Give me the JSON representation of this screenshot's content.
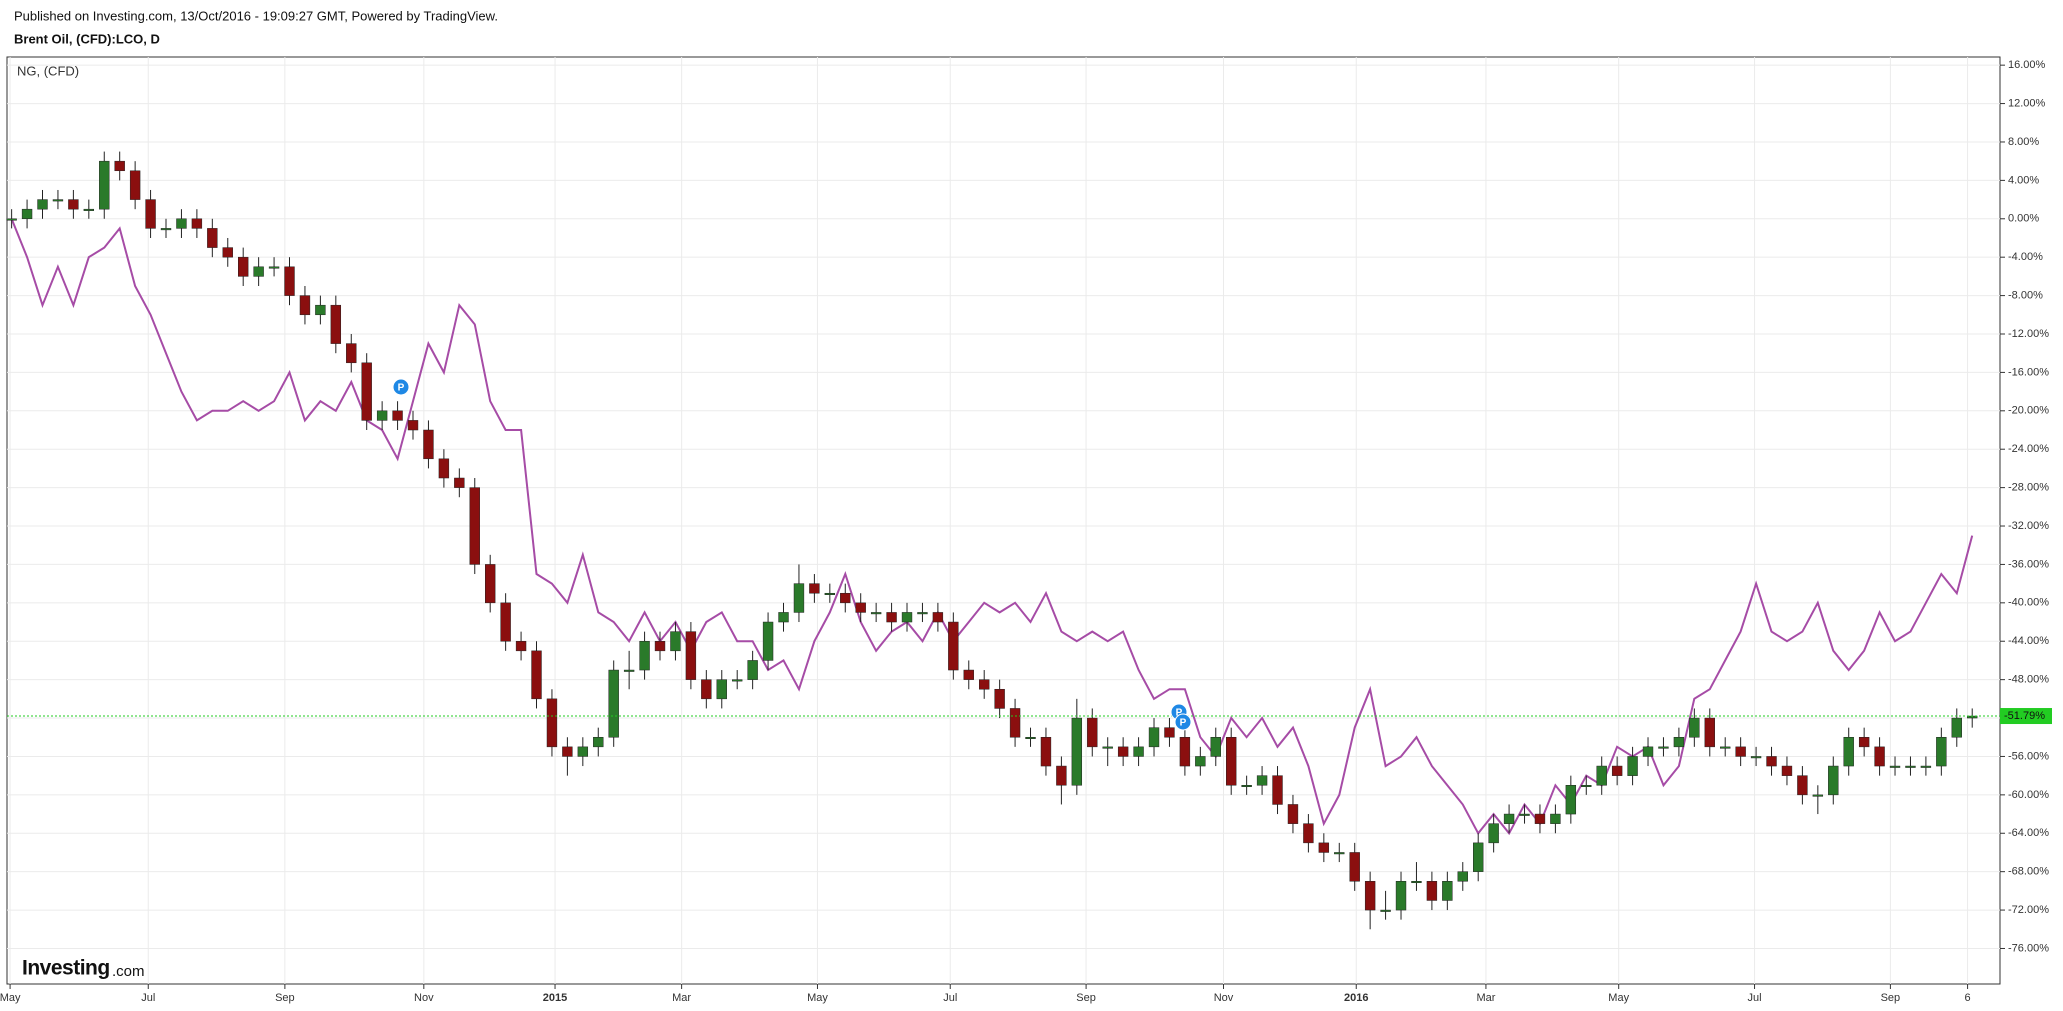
{
  "header": {
    "published": "Published on Investing.com, 13/Oct/2016 - 19:09:27 GMT, Powered by TradingView.",
    "logo": "Investing",
    "logo_suffix": ".com"
  },
  "chart_data": {
    "type": "candlestick",
    "title": "Brent Oil, (CFD):LCO, D",
    "categories": [
      null,
      null,
      null,
      null,
      null,
      null,
      null,
      null,
      null,
      null,
      null,
      null,
      null,
      null,
      null,
      null,
      null,
      null,
      null,
      null,
      null,
      null,
      null,
      null,
      null,
      null,
      null,
      null,
      null,
      null,
      null,
      null,
      null,
      null,
      null,
      null,
      null,
      null,
      null,
      null,
      null,
      null,
      null,
      null,
      null,
      null,
      null,
      null,
      null,
      null,
      null,
      null,
      null,
      null,
      null,
      null,
      null,
      null,
      null,
      null,
      null,
      null,
      null,
      null,
      null,
      null,
      null,
      null,
      null,
      null,
      null,
      null,
      null,
      null,
      null,
      null,
      null,
      null,
      null,
      null,
      null,
      null,
      null,
      null,
      null,
      null,
      null,
      null,
      null,
      null,
      null,
      null,
      null,
      null,
      null,
      null,
      null,
      null,
      null,
      null,
      null,
      null,
      null,
      null,
      null,
      null,
      null,
      null,
      null,
      null,
      null,
      null,
      null,
      null,
      null,
      null,
      null,
      null,
      null,
      null,
      null,
      null,
      null,
      null,
      null,
      null,
      null,
      null
    ],
    "series": [
      {
        "name": "Brent Oil, (CFD):LCO, D",
        "type": "candlestick",
        "up_color": "#2a7a2a",
        "down_color": "#8b0f0f",
        "open": [
          0,
          0,
          1,
          2,
          2,
          1,
          1,
          6,
          5,
          2,
          -1,
          -1,
          0,
          -1,
          -3,
          -4,
          -6,
          -5,
          -5,
          -8,
          -10,
          -9,
          -13,
          -15,
          -21,
          -20,
          -21,
          -22,
          -25,
          -27,
          -28,
          -36,
          -40,
          -44,
          -45,
          -50,
          -55,
          -56,
          -55,
          -54,
          -47,
          -47,
          -44,
          -45,
          -43,
          -48,
          -50,
          -48,
          -48,
          -46,
          -42,
          -41,
          -38,
          -39,
          -39,
          -40,
          -41,
          -41,
          -42,
          -41,
          -41,
          -42,
          -47,
          -48,
          -49,
          -51,
          -54,
          -54,
          -57,
          -59,
          -52,
          -55,
          -55,
          -56,
          -55,
          -53,
          -54,
          -57,
          -56,
          -54,
          -59,
          -59,
          -58,
          -61,
          -63,
          -65,
          -66,
          -66,
          -69,
          -72,
          -72,
          -69,
          -69,
          -71,
          -69,
          -68,
          -65,
          -63,
          -62,
          -62,
          -63,
          -62,
          -59,
          -59,
          -57,
          -58,
          -56,
          -55,
          -55,
          -54,
          -52,
          -55,
          -55,
          -56,
          -56,
          -57,
          -58,
          -60,
          -60,
          -57,
          -54,
          -55,
          -57,
          -57,
          -57,
          -57,
          -54,
          -52
        ],
        "high": [
          1,
          2,
          3,
          3,
          3,
          2,
          7,
          7,
          6,
          3,
          0,
          1,
          1,
          0,
          -2,
          -3,
          -4,
          -4,
          -4,
          -7,
          -8,
          -8,
          -12,
          -14,
          -19,
          -19,
          -20,
          -21,
          -24,
          -26,
          -27,
          -35,
          -39,
          -43,
          -44,
          -49,
          -54,
          -54,
          -53,
          -46,
          -45,
          -43,
          -43,
          -42,
          -42,
          -47,
          -47,
          -47,
          -45,
          -41,
          -40,
          -36,
          -37,
          -38,
          -38,
          -39,
          -40,
          -40,
          -40,
          -40,
          -40,
          -41,
          -46,
          -47,
          -48,
          -50,
          -53,
          -53,
          -56,
          -50,
          -51,
          -54,
          -54,
          -54,
          -52,
          -52,
          -53,
          -55,
          -53,
          -53,
          -58,
          -57,
          -57,
          -60,
          -62,
          -64,
          -65,
          -65,
          -68,
          -70,
          -68,
          -67,
          -68,
          -68,
          -67,
          -64,
          -62,
          -61,
          -61,
          -61,
          -61,
          -58,
          -58,
          -56,
          -56,
          -55,
          -54,
          -54,
          -53,
          -51,
          -51,
          -54,
          -54,
          -55,
          -55,
          -56,
          -57,
          -59,
          -56,
          -53,
          -53,
          -54,
          -56,
          -56,
          -56,
          -53,
          -51,
          -51
        ],
        "low": [
          -1,
          -1,
          0,
          1,
          0,
          0,
          0,
          4,
          1,
          -2,
          -2,
          -2,
          -2,
          -4,
          -5,
          -7,
          -7,
          -6,
          -9,
          -11,
          -11,
          -14,
          -16,
          -22,
          -22,
          -22,
          -23,
          -26,
          -28,
          -29,
          -37,
          -41,
          -45,
          -46,
          -51,
          -56,
          -58,
          -57,
          -56,
          -55,
          -49,
          -48,
          -46,
          -46,
          -49,
          -51,
          -51,
          -49,
          -49,
          -47,
          -43,
          -42,
          -40,
          -40,
          -41,
          -42,
          -42,
          -43,
          -43,
          -42,
          -43,
          -48,
          -49,
          -50,
          -52,
          -55,
          -55,
          -58,
          -61,
          -60,
          -56,
          -57,
          -57,
          -57,
          -56,
          -55,
          -58,
          -58,
          -57,
          -60,
          -60,
          -60,
          -62,
          -64,
          -66,
          -67,
          -67,
          -70,
          -74,
          -73,
          -73,
          -70,
          -72,
          -72,
          -70,
          -69,
          -66,
          -64,
          -63,
          -64,
          -64,
          -63,
          -60,
          -60,
          -59,
          -59,
          -57,
          -56,
          -56,
          -55,
          -56,
          -56,
          -57,
          -57,
          -58,
          -59,
          -61,
          -62,
          -61,
          -58,
          -56,
          -58,
          -58,
          -58,
          -58,
          -58,
          -55,
          -53
        ],
        "close": [
          0,
          1,
          2,
          2,
          1,
          1,
          6,
          5,
          2,
          -1,
          -1,
          0,
          -1,
          -3,
          -4,
          -6,
          -5,
          -5,
          -8,
          -10,
          -9,
          -13,
          -15,
          -21,
          -20,
          -21,
          -22,
          -25,
          -27,
          -28,
          -36,
          -40,
          -44,
          -45,
          -50,
          -55,
          -56,
          -55,
          -54,
          -47,
          -47,
          -44,
          -45,
          -43,
          -48,
          -50,
          -48,
          -48,
          -46,
          -42,
          -41,
          -38,
          -39,
          -39,
          -40,
          -41,
          -41,
          -42,
          -41,
          -41,
          -42,
          -47,
          -48,
          -49,
          -51,
          -54,
          -54,
          -57,
          -59,
          -52,
          -55,
          -55,
          -56,
          -55,
          -53,
          -54,
          -57,
          -56,
          -54,
          -59,
          -59,
          -58,
          -61,
          -63,
          -65,
          -66,
          -66,
          -69,
          -72,
          -72,
          -69,
          -69,
          -71,
          -69,
          -68,
          -65,
          -63,
          -62,
          -62,
          -63,
          -62,
          -59,
          -59,
          -57,
          -58,
          -56,
          -55,
          -55,
          -54,
          -52,
          -55,
          -55,
          -56,
          -56,
          -57,
          -58,
          -60,
          -60,
          -57,
          -54,
          -55,
          -57,
          -57,
          -57,
          -57,
          -54,
          -52,
          -51.79
        ]
      },
      {
        "name": "NG,  (CFD)",
        "type": "line",
        "color": "#a64ca6",
        "values": [
          0,
          -4,
          -9,
          -5,
          -9,
          -4,
          -3,
          -1,
          -7,
          -10,
          -14,
          -18,
          -21,
          -20,
          -20,
          -19,
          -20,
          -19,
          -16,
          -21,
          -19,
          -20,
          -17,
          -21,
          -22,
          -25,
          -19,
          -13,
          -16,
          -9,
          -11,
          -19,
          -22,
          -22,
          -37,
          -38,
          -40,
          -35,
          -41,
          -42,
          -44,
          -41,
          -44,
          -42,
          -45,
          -42,
          -41,
          -44,
          -44,
          -47,
          -46,
          -49,
          -44,
          -41,
          -37,
          -42,
          -45,
          -43,
          -42,
          -44,
          -41,
          -44,
          -42,
          -40,
          -41,
          -40,
          -42,
          -39,
          -43,
          -44,
          -43,
          -44,
          -43,
          -47,
          -50,
          -49,
          -49,
          -54,
          -56,
          -52,
          -54,
          -52,
          -55,
          -53,
          -57,
          -63,
          -60,
          -53,
          -49,
          -57,
          -56,
          -54,
          -57,
          -59,
          -61,
          -64,
          -62,
          -64,
          -61,
          -63,
          -59,
          -61,
          -58,
          -59,
          -55,
          -56,
          -55,
          -59,
          -57,
          -50,
          -49,
          -46,
          -43,
          -38,
          -43,
          -44,
          -43,
          -40,
          -45,
          -47,
          -45,
          -41,
          -44,
          -43,
          -40,
          -37,
          -39,
          -33
        ]
      }
    ],
    "xlim": [
      -0.3,
      128.8
    ],
    "xticks": [
      {
        "value": -0.1,
        "label": "May"
      },
      {
        "value": 8.85,
        "label": "Jul"
      },
      {
        "value": 17.7,
        "label": "Sep"
      },
      {
        "value": 26.7,
        "label": "Nov"
      },
      {
        "value": 35.2,
        "label": "2015"
      },
      {
        "value": 43.4,
        "label": "Mar"
      },
      {
        "value": 52.2,
        "label": "May"
      },
      {
        "value": 60.8,
        "label": "Jul"
      },
      {
        "value": 69.6,
        "label": "Sep"
      },
      {
        "value": 78.5,
        "label": "Nov"
      },
      {
        "value": 87.1,
        "label": "2016"
      },
      {
        "value": 95.5,
        "label": "Mar"
      },
      {
        "value": 104.1,
        "label": "May"
      },
      {
        "value": 112.9,
        "label": "Jul"
      },
      {
        "value": 121.7,
        "label": "Sep"
      },
      {
        "value": 126.7,
        "label": "6"
      }
    ],
    "ylim": [
      -79.7,
      16.85
    ],
    "yticks": [
      {
        "value": 16,
        "label": "16.00%"
      },
      {
        "value": 12,
        "label": "12.00%"
      },
      {
        "value": 8,
        "label": "8.00%"
      },
      {
        "value": 4,
        "label": "4.00%"
      },
      {
        "value": 0,
        "label": "0.00%"
      },
      {
        "value": -4,
        "label": "-4.00%"
      },
      {
        "value": -8,
        "label": "-8.00%"
      },
      {
        "value": -12,
        "label": "-12.00%"
      },
      {
        "value": -16,
        "label": "-16.00%"
      },
      {
        "value": -20,
        "label": "-20.00%"
      },
      {
        "value": -24,
        "label": "-24.00%"
      },
      {
        "value": -28,
        "label": "-28.00%"
      },
      {
        "value": -32,
        "label": "-32.00%"
      },
      {
        "value": -36,
        "label": "-36.00%"
      },
      {
        "value": -40,
        "label": "-40.00%"
      },
      {
        "value": -44,
        "label": "-44.00%"
      },
      {
        "value": -48,
        "label": "-48.00%"
      },
      {
        "value": -52,
        "label": "-52.00%"
      },
      {
        "value": -56,
        "label": "-56.00%"
      },
      {
        "value": -60,
        "label": "-60.00%"
      },
      {
        "value": -64,
        "label": "-64.00%"
      },
      {
        "value": -68,
        "label": "-68.00%"
      },
      {
        "value": -72,
        "label": "-72.00%"
      },
      {
        "value": -76,
        "label": "-76.00%"
      }
    ],
    "grid": true,
    "price_line": {
      "value": -51.79,
      "label": "-51.79%",
      "color": "#22cc22"
    },
    "event_markers": [
      "P",
      "P",
      "P"
    ]
  }
}
